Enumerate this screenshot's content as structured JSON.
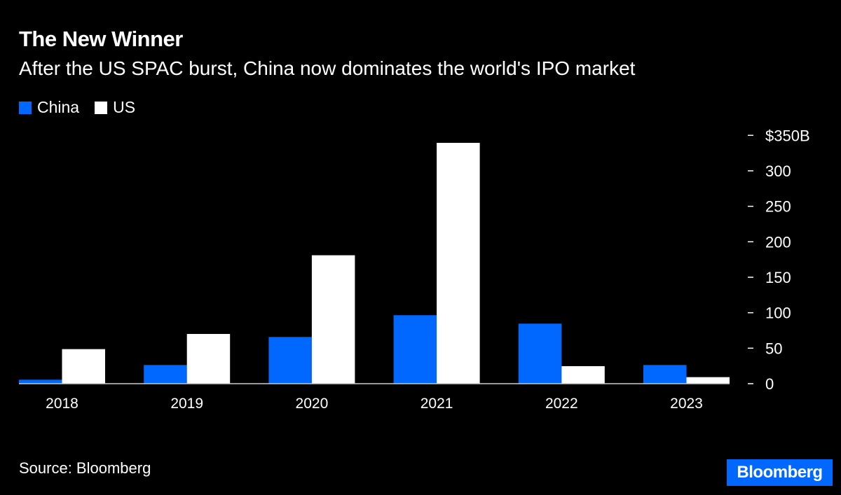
{
  "chart_data": {
    "type": "bar",
    "title": "The New Winner",
    "subtitle": "After the US SPAC burst, China now dominates the world's IPO market",
    "categories": [
      "2018",
      "2019",
      "2020",
      "2021",
      "2022",
      "2023"
    ],
    "series": [
      {
        "name": "China",
        "color": "#0068ff",
        "values": [
          5.6,
          26.3,
          65.8,
          96.5,
          84.6,
          26.3
        ]
      },
      {
        "name": "US",
        "color": "#ffffff",
        "values": [
          48.7,
          70.1,
          181,
          339.4,
          24.7,
          9.2
        ]
      }
    ],
    "ylim": [
      0,
      350
    ],
    "yticks": [
      0,
      50,
      100,
      150,
      200,
      250,
      300,
      350
    ],
    "ytick_labels": [
      "0",
      "50",
      "100",
      "150",
      "200",
      "250",
      "300",
      "$350B"
    ],
    "xlabel": "",
    "ylabel": "",
    "legend": "top-left",
    "grid": false,
    "source": "Source: Bloomberg"
  },
  "branding": {
    "logo": "Bloomberg"
  }
}
